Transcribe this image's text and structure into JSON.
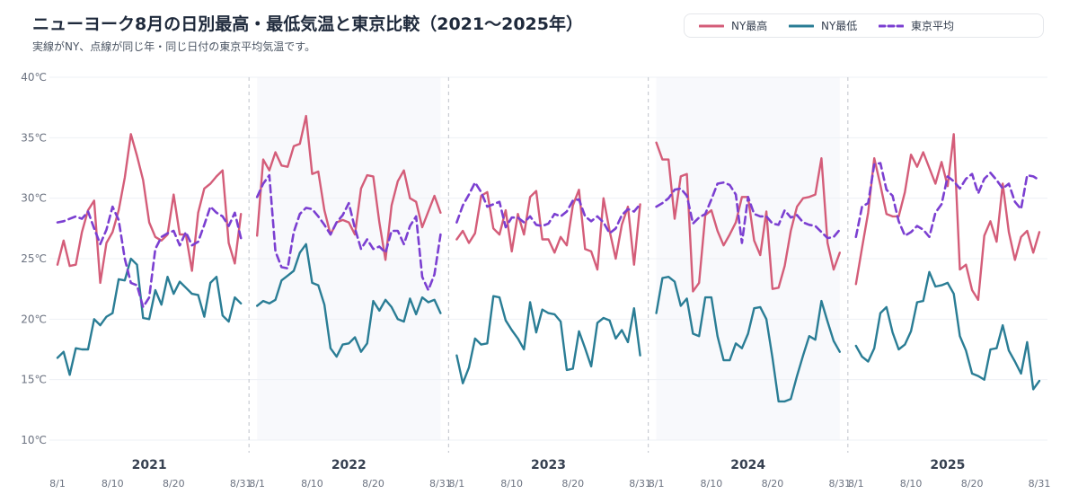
{
  "chart_data": {
    "type": "line",
    "title": "ニューヨーク8月の日別最高・最低気温と東京比較（2021〜2025年）",
    "subtitle": "実線がNY、点線が同じ年・同じ日付の東京平均気温です。",
    "ylim": [
      10,
      40
    ],
    "y_ticks": [
      "10℃",
      "15℃",
      "20℃",
      "25℃",
      "30℃",
      "35℃",
      "40℃"
    ],
    "x_ticks": [
      "8/1",
      "8/10",
      "8/20",
      "8/31"
    ],
    "x_tick_days": [
      1,
      10,
      20,
      31
    ],
    "legend": [
      {
        "name": "NY最高",
        "color": "#d45d79",
        "dash": false
      },
      {
        "name": "NY最低",
        "color": "#2a7d95",
        "dash": false
      },
      {
        "name": "東京平均",
        "color": "#7b3fd1",
        "dash": true
      }
    ],
    "colors": {
      "high": "#d45d79",
      "low": "#2a7d95",
      "tokyo": "#7b3fd1"
    },
    "panels": [
      {
        "year": "2021",
        "high": [
          24.5,
          26.5,
          24.4,
          24.5,
          27.2,
          29.0,
          29.8,
          23.0,
          26.3,
          27.2,
          29.0,
          31.7,
          35.3,
          33.5,
          31.5,
          28.0,
          26.8,
          26.5,
          27.0,
          30.3,
          27.0,
          27.0,
          24.0,
          28.8,
          30.8,
          31.2,
          31.8,
          32.3,
          26.3,
          24.6,
          28.7
        ],
        "low": [
          16.8,
          17.3,
          15.4,
          17.6,
          17.5,
          17.5,
          20.0,
          19.5,
          20.2,
          20.5,
          23.3,
          23.2,
          25.0,
          24.5,
          20.1,
          20.0,
          22.4,
          21.2,
          23.5,
          22.1,
          23.1,
          22.6,
          22.1,
          22.0,
          20.2,
          23.0,
          23.5,
          20.3,
          19.8,
          21.8,
          21.3
        ],
        "tokyo": [
          28.0,
          28.1,
          28.3,
          28.5,
          28.3,
          28.9,
          27.5,
          26.2,
          27.4,
          29.3,
          28.2,
          25.0,
          23.0,
          22.8,
          21.0,
          21.8,
          25.8,
          26.8,
          27.1,
          27.3,
          26.1,
          27.2,
          26.1,
          26.4,
          27.8,
          29.3,
          28.8,
          28.5,
          27.7,
          28.8,
          26.7
        ]
      },
      {
        "year": "2022",
        "high": [
          26.9,
          33.2,
          32.3,
          33.8,
          32.7,
          32.6,
          34.3,
          34.5,
          36.8,
          32.0,
          32.2,
          29.0,
          27.0,
          28.0,
          28.2,
          28.0,
          27.0,
          30.8,
          31.9,
          31.8,
          28.0,
          24.9,
          29.4,
          31.4,
          32.3,
          30.0,
          29.7,
          27.6,
          28.9,
          30.2,
          28.8
        ],
        "low": [
          21.1,
          21.5,
          21.3,
          21.6,
          23.2,
          23.6,
          24.0,
          25.5,
          26.2,
          23.0,
          22.8,
          21.2,
          17.6,
          16.9,
          17.9,
          18.0,
          18.5,
          17.3,
          18.0,
          21.5,
          20.7,
          21.6,
          21.0,
          20.0,
          19.8,
          21.7,
          20.4,
          21.8,
          21.4,
          21.6,
          20.5
        ],
        "tokyo": [
          30.1,
          31.2,
          31.9,
          25.6,
          24.3,
          24.2,
          27.2,
          28.7,
          29.2,
          29.1,
          28.5,
          27.8,
          27.0,
          28.0,
          28.6,
          29.6,
          27.5,
          25.8,
          26.6,
          25.8,
          26.0,
          25.5,
          27.3,
          27.3,
          26.2,
          27.7,
          28.5,
          23.5,
          22.4,
          23.7,
          27.0
        ]
      },
      {
        "year": "2023",
        "high": [
          26.6,
          27.3,
          26.3,
          27.1,
          30.2,
          30.5,
          27.5,
          27.0,
          29.0,
          25.6,
          28.7,
          27.0,
          30.1,
          30.6,
          26.6,
          26.6,
          25.5,
          26.8,
          26.1,
          29.4,
          30.7,
          25.8,
          25.6,
          24.1,
          30.0,
          27.3,
          25.0,
          27.8,
          29.3,
          24.5,
          29.5
        ],
        "low": [
          17.0,
          14.7,
          16.0,
          18.4,
          17.9,
          18.0,
          21.9,
          21.8,
          19.9,
          19.1,
          18.4,
          17.5,
          21.4,
          18.9,
          20.8,
          20.5,
          20.4,
          19.8,
          15.8,
          15.9,
          19.0,
          17.6,
          16.1,
          19.7,
          20.1,
          19.9,
          18.4,
          19.1,
          18.1,
          20.9,
          17.0
        ],
        "tokyo": [
          28.0,
          29.4,
          30.3,
          31.3,
          30.5,
          29.3,
          29.5,
          29.7,
          27.6,
          28.4,
          28.4,
          28.0,
          28.5,
          27.8,
          27.7,
          27.9,
          28.7,
          28.5,
          28.9,
          29.8,
          29.9,
          28.5,
          28.1,
          28.5,
          28.0,
          27.1,
          27.5,
          28.6,
          29.1,
          28.9,
          29.5
        ]
      },
      {
        "year": "2024",
        "high": [
          34.6,
          33.2,
          33.2,
          28.3,
          31.8,
          32.0,
          22.3,
          23.0,
          28.6,
          29.0,
          27.3,
          26.1,
          27.0,
          28.0,
          30.1,
          30.1,
          26.5,
          25.3,
          28.9,
          22.5,
          22.6,
          24.4,
          27.3,
          29.3,
          30.0,
          30.1,
          30.3,
          33.3,
          26.3,
          24.1,
          25.5
        ],
        "low": [
          20.5,
          23.4,
          23.5,
          23.1,
          21.1,
          21.7,
          18.8,
          18.6,
          21.8,
          21.8,
          18.6,
          16.6,
          16.6,
          18.0,
          17.6,
          18.8,
          20.9,
          21.0,
          20.0,
          16.8,
          13.2,
          13.2,
          13.4,
          15.3,
          17.0,
          18.6,
          18.3,
          21.5,
          19.8,
          18.2,
          17.3
        ],
        "tokyo": [
          29.3,
          29.6,
          30.0,
          30.7,
          30.8,
          30.2,
          27.9,
          28.4,
          28.7,
          29.9,
          31.2,
          31.3,
          31.1,
          30.3,
          26.3,
          30.1,
          28.7,
          28.5,
          28.5,
          27.9,
          27.8,
          29.0,
          28.4,
          28.6,
          28.0,
          27.8,
          27.7,
          27.2,
          26.7,
          26.8,
          27.4
        ]
      },
      {
        "year": "2025",
        "high": [
          22.9,
          25.9,
          28.8,
          33.3,
          31.1,
          28.7,
          28.5,
          28.5,
          30.5,
          33.6,
          32.6,
          33.8,
          32.5,
          31.2,
          33.0,
          31.0,
          35.3,
          24.1,
          24.5,
          22.4,
          21.6,
          26.9,
          28.1,
          26.4,
          31.2,
          27.2,
          24.9,
          26.8,
          27.3,
          25.5,
          27.2
        ],
        "low": [
          17.8,
          16.9,
          16.5,
          17.6,
          20.5,
          21.0,
          18.9,
          17.5,
          17.9,
          19.0,
          21.4,
          21.5,
          23.9,
          22.7,
          22.8,
          23.0,
          22.1,
          18.6,
          17.4,
          15.5,
          15.3,
          15.0,
          17.5,
          17.6,
          19.5,
          17.4,
          16.5,
          15.5,
          18.1,
          14.2,
          14.9
        ],
        "tokyo": [
          26.8,
          29.3,
          29.6,
          32.8,
          32.9,
          30.7,
          30.2,
          28.1,
          26.9,
          27.2,
          27.7,
          27.4,
          26.8,
          28.8,
          29.5,
          31.8,
          31.4,
          30.8,
          31.6,
          32.0,
          30.4,
          31.6,
          32.1,
          31.5,
          30.8,
          31.2,
          29.7,
          29.1,
          31.9,
          31.8,
          31.5
        ]
      }
    ]
  }
}
